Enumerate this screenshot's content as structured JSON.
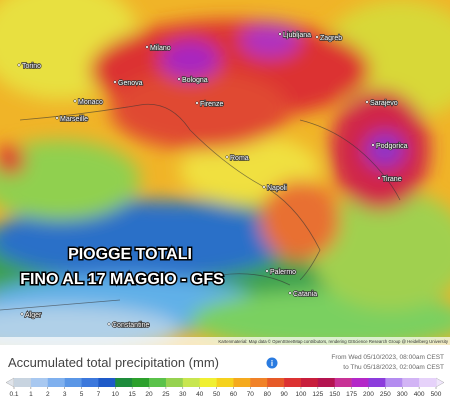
{
  "map": {
    "cities": [
      "Torino",
      "Milano",
      "Genova",
      "Bologna",
      "Monaco",
      "Firenze",
      "Marseille",
      "Roma",
      "Napoli",
      "Palermo",
      "Catania",
      "Ljubljana",
      "Zagreb",
      "Sarajevo",
      "Podgorica",
      "Tirane",
      "Alger",
      "Constantine"
    ],
    "overlay": [
      "PIOGGE TOTALI",
      "FINO AL 17 MAGGIO - GFS"
    ],
    "attribution": "Kartenmaterial: Map data © OpenStreetMap contributors, rendering GIScience Research Group @ Heidelberg University"
  },
  "legend": {
    "title": "Accumulated total precipitation (mm)",
    "from": "From Wed 05/10/2023, 08:00am CEST",
    "to": "to Thu 05/18/2023, 02:00am CEST",
    "ticks": [
      0.1,
      1,
      2,
      3,
      5,
      7,
      10,
      15,
      20,
      25,
      30,
      40,
      50,
      60,
      70,
      80,
      90,
      100,
      125,
      150,
      175,
      200,
      250,
      300,
      400,
      500
    ],
    "colors": [
      "#c8d4e0",
      "#a8c8f0",
      "#7fb0ee",
      "#5a96e6",
      "#3c78dc",
      "#1e5ac8",
      "#1e8c3c",
      "#2ca02c",
      "#5ac24a",
      "#96d250",
      "#c8e650",
      "#f0f032",
      "#f5d21e",
      "#f5aa1e",
      "#f08228",
      "#e65a28",
      "#dc3232",
      "#c81e3c",
      "#b41450",
      "#c83296",
      "#b428c8",
      "#8c3cdc",
      "#b48cf0",
      "#d2b4f5",
      "#e6d2fa"
    ]
  }
}
